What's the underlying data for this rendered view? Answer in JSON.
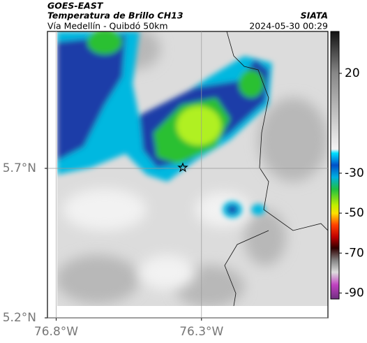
{
  "header": {
    "title": "GOES-EAST",
    "subtitle": "Temperatura de Brillo CH13",
    "route": "Vía Medellín - Quibdó 50km",
    "source": "SIATA",
    "timestamp": "2024-05-30 00:29"
  },
  "axes": {
    "xlim": [
      -76.83,
      -75.865
    ],
    "ylim": [
      5.2,
      6.158
    ],
    "xticks": [
      {
        "value": -76.8,
        "label": "76.8°W"
      },
      {
        "value": -76.3,
        "label": "76.3°W"
      }
    ],
    "yticks": [
      {
        "value": 5.7,
        "label": "5.7°N"
      },
      {
        "value": 5.2,
        "label": "5.2°N"
      }
    ]
  },
  "colorbar": {
    "lim": [
      -93,
      41
    ],
    "ticks": [
      20,
      -30,
      -50,
      -70,
      -90
    ]
  }
}
